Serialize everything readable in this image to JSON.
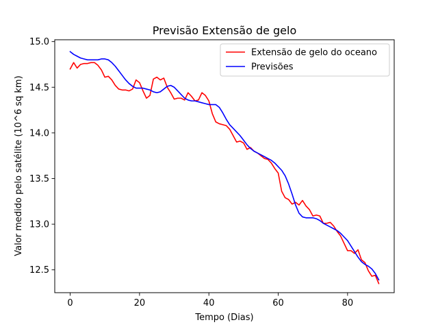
{
  "chart_data": {
    "type": "line",
    "title": "Previsão Extensão de gelo",
    "xlabel": "Tempo (Dias)",
    "ylabel": "Valor medido pelo satélite (10^6 sq km)",
    "xlim": [
      -4.45,
      93.45
    ],
    "ylim": [
      12.25,
      15.02
    ],
    "xticks": [
      0,
      20,
      40,
      60,
      80
    ],
    "yticks": [
      12.5,
      13.0,
      13.5,
      14.0,
      14.5,
      15.0
    ],
    "ytick_labels": [
      "12.5",
      "13.0",
      "13.5",
      "14.0",
      "14.5",
      "15.0"
    ],
    "grid": false,
    "legend_position": "upper right",
    "series": [
      {
        "name": "Extensão de gelo do oceano",
        "color": "#ff0000",
        "x": [
          0,
          1,
          2,
          3,
          4,
          5,
          6,
          7,
          8,
          9,
          10,
          11,
          12,
          13,
          14,
          15,
          16,
          17,
          18,
          19,
          20,
          21,
          22,
          23,
          24,
          25,
          26,
          27,
          28,
          29,
          30,
          31,
          32,
          33,
          34,
          35,
          36,
          37,
          38,
          39,
          40,
          41,
          42,
          43,
          44,
          45,
          46,
          47,
          48,
          49,
          50,
          51,
          52,
          53,
          54,
          55,
          56,
          57,
          58,
          59,
          60,
          61,
          62,
          63,
          64,
          65,
          66,
          67,
          68,
          69,
          70,
          71,
          72,
          73,
          74,
          75,
          76,
          77,
          78,
          79,
          80,
          81,
          82,
          83,
          84,
          85,
          86,
          87,
          88,
          89
        ],
        "y": [
          14.7,
          14.77,
          14.71,
          14.75,
          14.76,
          14.76,
          14.77,
          14.77,
          14.74,
          14.69,
          14.61,
          14.62,
          14.58,
          14.52,
          14.48,
          14.47,
          14.47,
          14.46,
          14.48,
          14.58,
          14.55,
          14.46,
          14.38,
          14.41,
          14.59,
          14.61,
          14.58,
          14.6,
          14.5,
          14.44,
          14.37,
          14.38,
          14.38,
          14.36,
          14.44,
          14.4,
          14.35,
          14.36,
          14.44,
          14.41,
          14.35,
          14.21,
          14.12,
          14.1,
          14.09,
          14.08,
          14.04,
          13.97,
          13.9,
          13.91,
          13.89,
          13.82,
          13.84,
          13.8,
          13.78,
          13.75,
          13.72,
          13.71,
          13.67,
          13.61,
          13.56,
          13.36,
          13.29,
          13.27,
          13.22,
          13.24,
          13.21,
          13.26,
          13.2,
          13.16,
          13.09,
          13.1,
          13.09,
          13.01,
          13.01,
          13.02,
          12.98,
          12.92,
          12.87,
          12.79,
          12.71,
          12.71,
          12.68,
          12.72,
          12.61,
          12.58,
          12.49,
          12.43,
          12.44,
          12.35
        ]
      },
      {
        "name": "Previsões",
        "color": "#0000ff",
        "x": [
          0,
          1,
          2,
          3,
          4,
          5,
          6,
          7,
          8,
          9,
          10,
          11,
          12,
          13,
          14,
          15,
          16,
          17,
          18,
          19,
          20,
          21,
          22,
          23,
          24,
          25,
          26,
          27,
          28,
          29,
          30,
          31,
          32,
          33,
          34,
          35,
          36,
          37,
          38,
          39,
          40,
          41,
          42,
          43,
          44,
          45,
          46,
          47,
          48,
          49,
          50,
          51,
          52,
          53,
          54,
          55,
          56,
          57,
          58,
          59,
          60,
          61,
          62,
          63,
          64,
          65,
          66,
          67,
          68,
          69,
          70,
          71,
          72,
          73,
          74,
          75,
          76,
          77,
          78,
          79,
          80,
          81,
          82,
          83,
          84,
          85,
          86,
          87,
          88,
          89
        ],
        "y": [
          14.89,
          14.86,
          14.84,
          14.82,
          14.81,
          14.8,
          14.8,
          14.8,
          14.8,
          14.81,
          14.81,
          14.8,
          14.77,
          14.73,
          14.68,
          14.63,
          14.58,
          14.54,
          14.51,
          14.49,
          14.49,
          14.49,
          14.48,
          14.47,
          14.45,
          14.44,
          14.45,
          14.48,
          14.51,
          14.52,
          14.5,
          14.46,
          14.42,
          14.38,
          14.36,
          14.35,
          14.35,
          14.34,
          14.33,
          14.32,
          14.31,
          14.31,
          14.31,
          14.28,
          14.22,
          14.15,
          14.09,
          14.05,
          14.01,
          13.97,
          13.92,
          13.87,
          13.83,
          13.8,
          13.78,
          13.76,
          13.74,
          13.72,
          13.7,
          13.67,
          13.63,
          13.59,
          13.53,
          13.44,
          13.33,
          13.21,
          13.12,
          13.08,
          13.07,
          13.07,
          13.07,
          13.06,
          13.04,
          13.01,
          12.99,
          12.97,
          12.95,
          12.93,
          12.9,
          12.86,
          12.82,
          12.76,
          12.7,
          12.64,
          12.59,
          12.56,
          12.54,
          12.51,
          12.46,
          12.39
        ]
      }
    ]
  }
}
